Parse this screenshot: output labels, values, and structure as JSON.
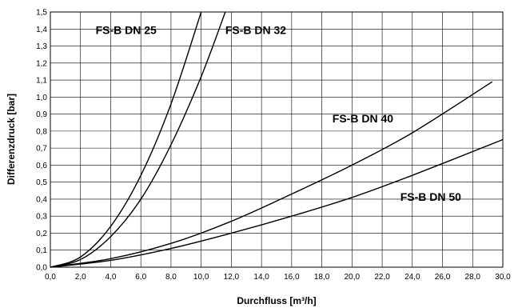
{
  "chart_data": {
    "type": "line",
    "xlabel": "Durchfluss [m³/h]",
    "ylabel": "Differenzdruck [bar]",
    "xlim": [
      0,
      30
    ],
    "ylim": [
      0,
      1.5
    ],
    "grid": true,
    "x_ticks": [
      "0,0",
      "2,0",
      "4,0",
      "6,0",
      "8,0",
      "10,0",
      "12,0",
      "14,0",
      "16,0",
      "18,0",
      "20,0",
      "22,0",
      "24,0",
      "26,0",
      "28,0",
      "30,0"
    ],
    "y_ticks": [
      "0,0",
      "0,1",
      "0,2",
      "0,3",
      "0,4",
      "0,5",
      "0,6",
      "0,7",
      "0,8",
      "0,9",
      "1,0",
      "1,1",
      "1,2",
      "1,3",
      "1,4",
      "1,5"
    ],
    "series": [
      {
        "name": "FS-B DN 25",
        "x": [
          0,
          2,
          4,
          6,
          8,
          10
        ],
        "y": [
          0,
          0.06,
          0.24,
          0.54,
          0.96,
          1.5
        ]
      },
      {
        "name": "FS-B DN 32",
        "x": [
          0,
          2,
          4,
          6,
          8,
          10,
          11.6
        ],
        "y": [
          0,
          0.045,
          0.18,
          0.4,
          0.72,
          1.12,
          1.5
        ]
      },
      {
        "name": "FS-B DN 40",
        "x": [
          0,
          4,
          8,
          12,
          16,
          20,
          24,
          29.3
        ],
        "y": [
          0,
          0.05,
          0.14,
          0.27,
          0.43,
          0.6,
          0.79,
          1.09
        ]
      },
      {
        "name": "FS-B DN 50",
        "x": [
          0,
          4,
          8,
          12,
          16,
          20,
          24,
          30
        ],
        "y": [
          0,
          0.04,
          0.11,
          0.2,
          0.3,
          0.41,
          0.54,
          0.75
        ]
      }
    ],
    "labels": [
      {
        "text": "FS-B DN 25",
        "x": 3.0,
        "y": 1.37
      },
      {
        "text": "FS-B DN 32",
        "x": 11.6,
        "y": 1.37
      },
      {
        "text": "FS-B DN 40",
        "x": 18.7,
        "y": 0.85
      },
      {
        "text": "FS-B DN 50",
        "x": 23.2,
        "y": 0.39
      }
    ]
  }
}
